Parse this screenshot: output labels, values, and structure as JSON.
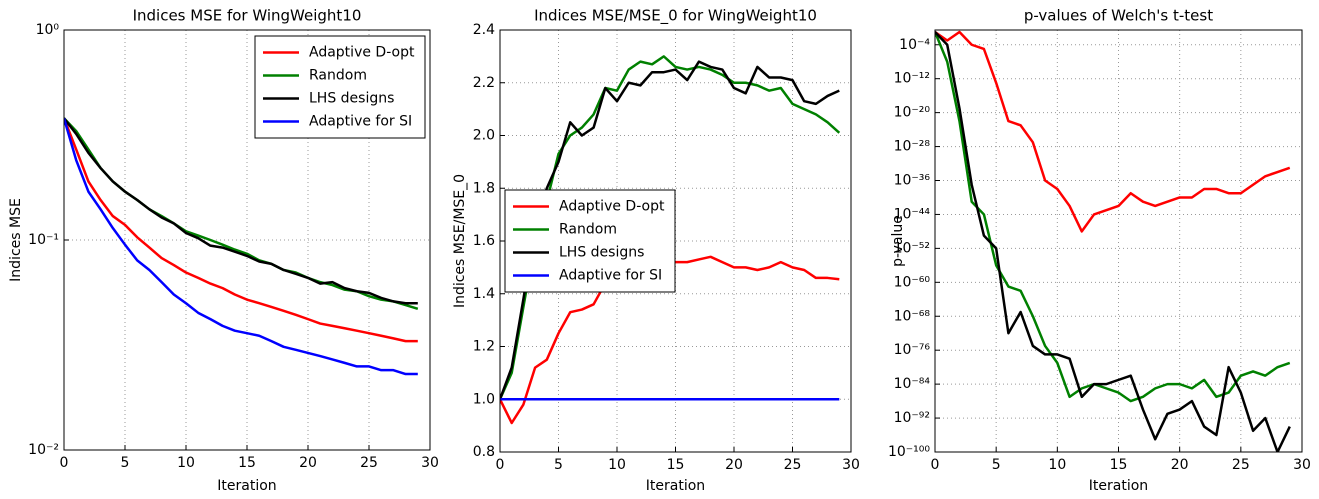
{
  "chart_data": [
    {
      "type": "line",
      "title": "Indices MSE for WingWeight10",
      "xlabel": "Iteration",
      "ylabel": "Indices MSE",
      "yscale": "log",
      "grid": true,
      "legend": "upper right",
      "xlim": [
        0,
        30
      ],
      "xticks": [
        0,
        5,
        10,
        15,
        20,
        25,
        30
      ],
      "ylim": [
        0.01,
        1
      ],
      "yticks": [
        {
          "value": 1,
          "label": "10⁰"
        },
        {
          "value": 0.1,
          "label": "10⁻¹"
        },
        {
          "value": 0.01,
          "label": "10⁻²"
        }
      ],
      "x": [
        0,
        1,
        2,
        3,
        4,
        5,
        6,
        7,
        8,
        9,
        10,
        11,
        12,
        13,
        14,
        15,
        16,
        17,
        18,
        19,
        20,
        21,
        22,
        23,
        24,
        25,
        26,
        27,
        28,
        29
      ],
      "series": [
        {
          "name": "Adaptive D-opt",
          "color": "#ff0000",
          "values": [
            0.38,
            0.27,
            0.19,
            0.155,
            0.13,
            0.118,
            0.103,
            0.092,
            0.082,
            0.076,
            0.07,
            0.066,
            0.062,
            0.059,
            0.055,
            0.052,
            0.05,
            0.048,
            0.046,
            0.044,
            0.042,
            0.04,
            0.039,
            0.038,
            0.037,
            0.036,
            0.035,
            0.034,
            0.033,
            0.033
          ]
        },
        {
          "name": "Random",
          "color": "#008000",
          "values": [
            0.38,
            0.33,
            0.27,
            0.22,
            0.19,
            0.17,
            0.155,
            0.14,
            0.13,
            0.12,
            0.11,
            0.105,
            0.1,
            0.095,
            0.09,
            0.086,
            0.08,
            0.077,
            0.072,
            0.07,
            0.066,
            0.063,
            0.061,
            0.058,
            0.057,
            0.054,
            0.052,
            0.051,
            0.049,
            0.047
          ]
        },
        {
          "name": "LHS designs",
          "color": "#000000",
          "values": [
            0.38,
            0.32,
            0.26,
            0.22,
            0.19,
            0.17,
            0.155,
            0.14,
            0.128,
            0.12,
            0.108,
            0.102,
            0.094,
            0.092,
            0.088,
            0.084,
            0.079,
            0.077,
            0.072,
            0.069,
            0.066,
            0.062,
            0.063,
            0.059,
            0.057,
            0.056,
            0.053,
            0.051,
            0.05,
            0.05
          ]
        },
        {
          "name": "Adaptive for SI",
          "color": "#0000ff",
          "values": [
            0.38,
            0.24,
            0.17,
            0.14,
            0.114,
            0.095,
            0.08,
            0.072,
            0.063,
            0.055,
            0.05,
            0.045,
            0.042,
            0.039,
            0.037,
            0.036,
            0.035,
            0.033,
            0.031,
            0.03,
            0.029,
            0.028,
            0.027,
            0.026,
            0.025,
            0.025,
            0.024,
            0.024,
            0.023,
            0.023
          ]
        }
      ]
    },
    {
      "type": "line",
      "title": "Indices MSE/MSE_0 for WingWeight10",
      "xlabel": "Iteration",
      "ylabel": "Indices MSE/MSE_0",
      "grid": true,
      "legend": "center left",
      "xlim": [
        0,
        30
      ],
      "xticks": [
        0,
        5,
        10,
        15,
        20,
        25,
        30
      ],
      "ylim": [
        0.8,
        2.4
      ],
      "yticks": [
        0.8,
        {
          "value": 1,
          "label": "1.0"
        },
        1.2,
        1.4,
        1.6,
        1.8,
        {
          "value": 2,
          "label": "2.0"
        },
        2.2,
        2.4
      ],
      "x": [
        0,
        1,
        2,
        3,
        4,
        5,
        6,
        7,
        8,
        9,
        10,
        11,
        12,
        13,
        14,
        15,
        16,
        17,
        18,
        19,
        20,
        21,
        22,
        23,
        24,
        25,
        26,
        27,
        28,
        29
      ],
      "series": [
        {
          "name": "Adaptive D-opt",
          "color": "#ff0000",
          "values": [
            1.0,
            0.91,
            0.98,
            1.12,
            1.15,
            1.25,
            1.33,
            1.34,
            1.36,
            1.44,
            1.48,
            1.5,
            1.51,
            1.52,
            1.53,
            1.52,
            1.52,
            1.53,
            1.54,
            1.52,
            1.5,
            1.5,
            1.49,
            1.5,
            1.52,
            1.5,
            1.49,
            1.46,
            1.46,
            1.455
          ]
        },
        {
          "name": "Random",
          "color": "#008000",
          "values": [
            1.0,
            1.1,
            1.35,
            1.6,
            1.75,
            1.93,
            2.0,
            2.03,
            2.08,
            2.18,
            2.17,
            2.25,
            2.28,
            2.27,
            2.3,
            2.26,
            2.25,
            2.26,
            2.25,
            2.23,
            2.2,
            2.2,
            2.19,
            2.17,
            2.18,
            2.12,
            2.1,
            2.08,
            2.05,
            2.01
          ]
        },
        {
          "name": "LHS designs",
          "color": "#000000",
          "values": [
            1.0,
            1.12,
            1.38,
            1.65,
            1.8,
            1.9,
            2.05,
            2.0,
            2.03,
            2.18,
            2.13,
            2.2,
            2.19,
            2.24,
            2.24,
            2.25,
            2.21,
            2.28,
            2.26,
            2.25,
            2.18,
            2.16,
            2.26,
            2.22,
            2.22,
            2.21,
            2.13,
            2.12,
            2.15,
            2.17
          ]
        },
        {
          "name": "Adaptive for SI",
          "color": "#0000ff",
          "values": [
            1,
            1,
            1,
            1,
            1,
            1,
            1,
            1,
            1,
            1,
            1,
            1,
            1,
            1,
            1,
            1,
            1,
            1,
            1,
            1,
            1,
            1,
            1,
            1,
            1,
            1,
            1,
            1,
            1,
            1
          ]
        }
      ]
    },
    {
      "type": "line",
      "title": "p-values of Welch's t-test",
      "xlabel": "Iteration",
      "ylabel": "p-value",
      "yscale": "log",
      "grid": true,
      "xlim": [
        0,
        30
      ],
      "xticks": [
        0,
        5,
        10,
        15,
        20,
        25,
        30
      ],
      "ylim": [
        1e-100,
        0.3
      ],
      "yticks": [
        {
          "value": 0.0001,
          "label": "10⁻⁴"
        },
        {
          "value": 1e-12,
          "label": "10⁻¹²"
        },
        {
          "value": 1e-20,
          "label": "10⁻²⁰"
        },
        {
          "value": 1e-28,
          "label": "10⁻²⁸"
        },
        {
          "value": 1e-36,
          "label": "10⁻³⁶"
        },
        {
          "value": 1e-44,
          "label": "10⁻⁴⁴"
        },
        {
          "value": 1e-52,
          "label": "10⁻⁵²"
        },
        {
          "value": 1e-60,
          "label": "10⁻⁶⁰"
        },
        {
          "value": 1e-68,
          "label": "10⁻⁶⁸"
        },
        {
          "value": 1e-76,
          "label": "10⁻⁷⁶"
        },
        {
          "value": 1e-84,
          "label": "10⁻⁸⁴"
        },
        {
          "value": 1e-92,
          "label": "10⁻⁹²"
        },
        {
          "value": 1e-100,
          "label": "10⁻¹⁰⁰"
        }
      ],
      "x": [
        0,
        1,
        2,
        3,
        4,
        5,
        6,
        7,
        8,
        9,
        10,
        11,
        12,
        13,
        14,
        15,
        16,
        17,
        18,
        19,
        20,
        21,
        22,
        23,
        24,
        25,
        26,
        27,
        28,
        29
      ],
      "series": [
        {
          "name": "Adaptive D-opt",
          "color": "#ff0000",
          "values": [
            0.1,
            0.001,
            0.1,
            0.0001,
            1e-05,
            1e-13,
            1e-22,
            1e-23,
            1e-27,
            1e-36,
            1e-38,
            1e-42,
            1e-48,
            1e-44,
            1e-43,
            1e-42,
            1e-39,
            1e-41,
            1e-42,
            1e-41,
            1e-40,
            1e-40,
            1e-38,
            1e-38,
            1e-39,
            1e-39,
            1e-37,
            1e-35,
            1e-34,
            1e-33
          ]
        },
        {
          "name": "Random",
          "color": "#008000",
          "values": [
            0.1,
            1e-08,
            1e-22,
            1e-41,
            1e-44,
            1e-56,
            1e-61,
            1e-62,
            1e-68,
            1e-75,
            1e-79,
            1e-87,
            1e-85,
            1e-84,
            1e-85,
            1e-86,
            1e-88,
            1e-87,
            1e-85,
            1e-84,
            1e-84,
            1e-85,
            1e-83,
            1e-87,
            1e-86,
            1e-82,
            1e-81,
            1e-82,
            1e-80,
            1e-79
          ]
        },
        {
          "name": "LHS designs",
          "color": "#000000",
          "values": [
            0.1,
            0.0001,
            1e-19,
            1e-37,
            1e-49,
            1e-52,
            1e-72,
            1e-67,
            1e-75,
            1e-77,
            1e-77,
            1e-78,
            1e-87,
            1e-84,
            1e-84,
            1e-83,
            1e-82,
            1e-90,
            1e-97,
            1e-91,
            1e-90,
            1e-88,
            1e-94,
            1e-96,
            1e-80,
            1e-86,
            1e-95,
            1e-92,
            1e-100,
            1e-94
          ]
        }
      ]
    }
  ]
}
